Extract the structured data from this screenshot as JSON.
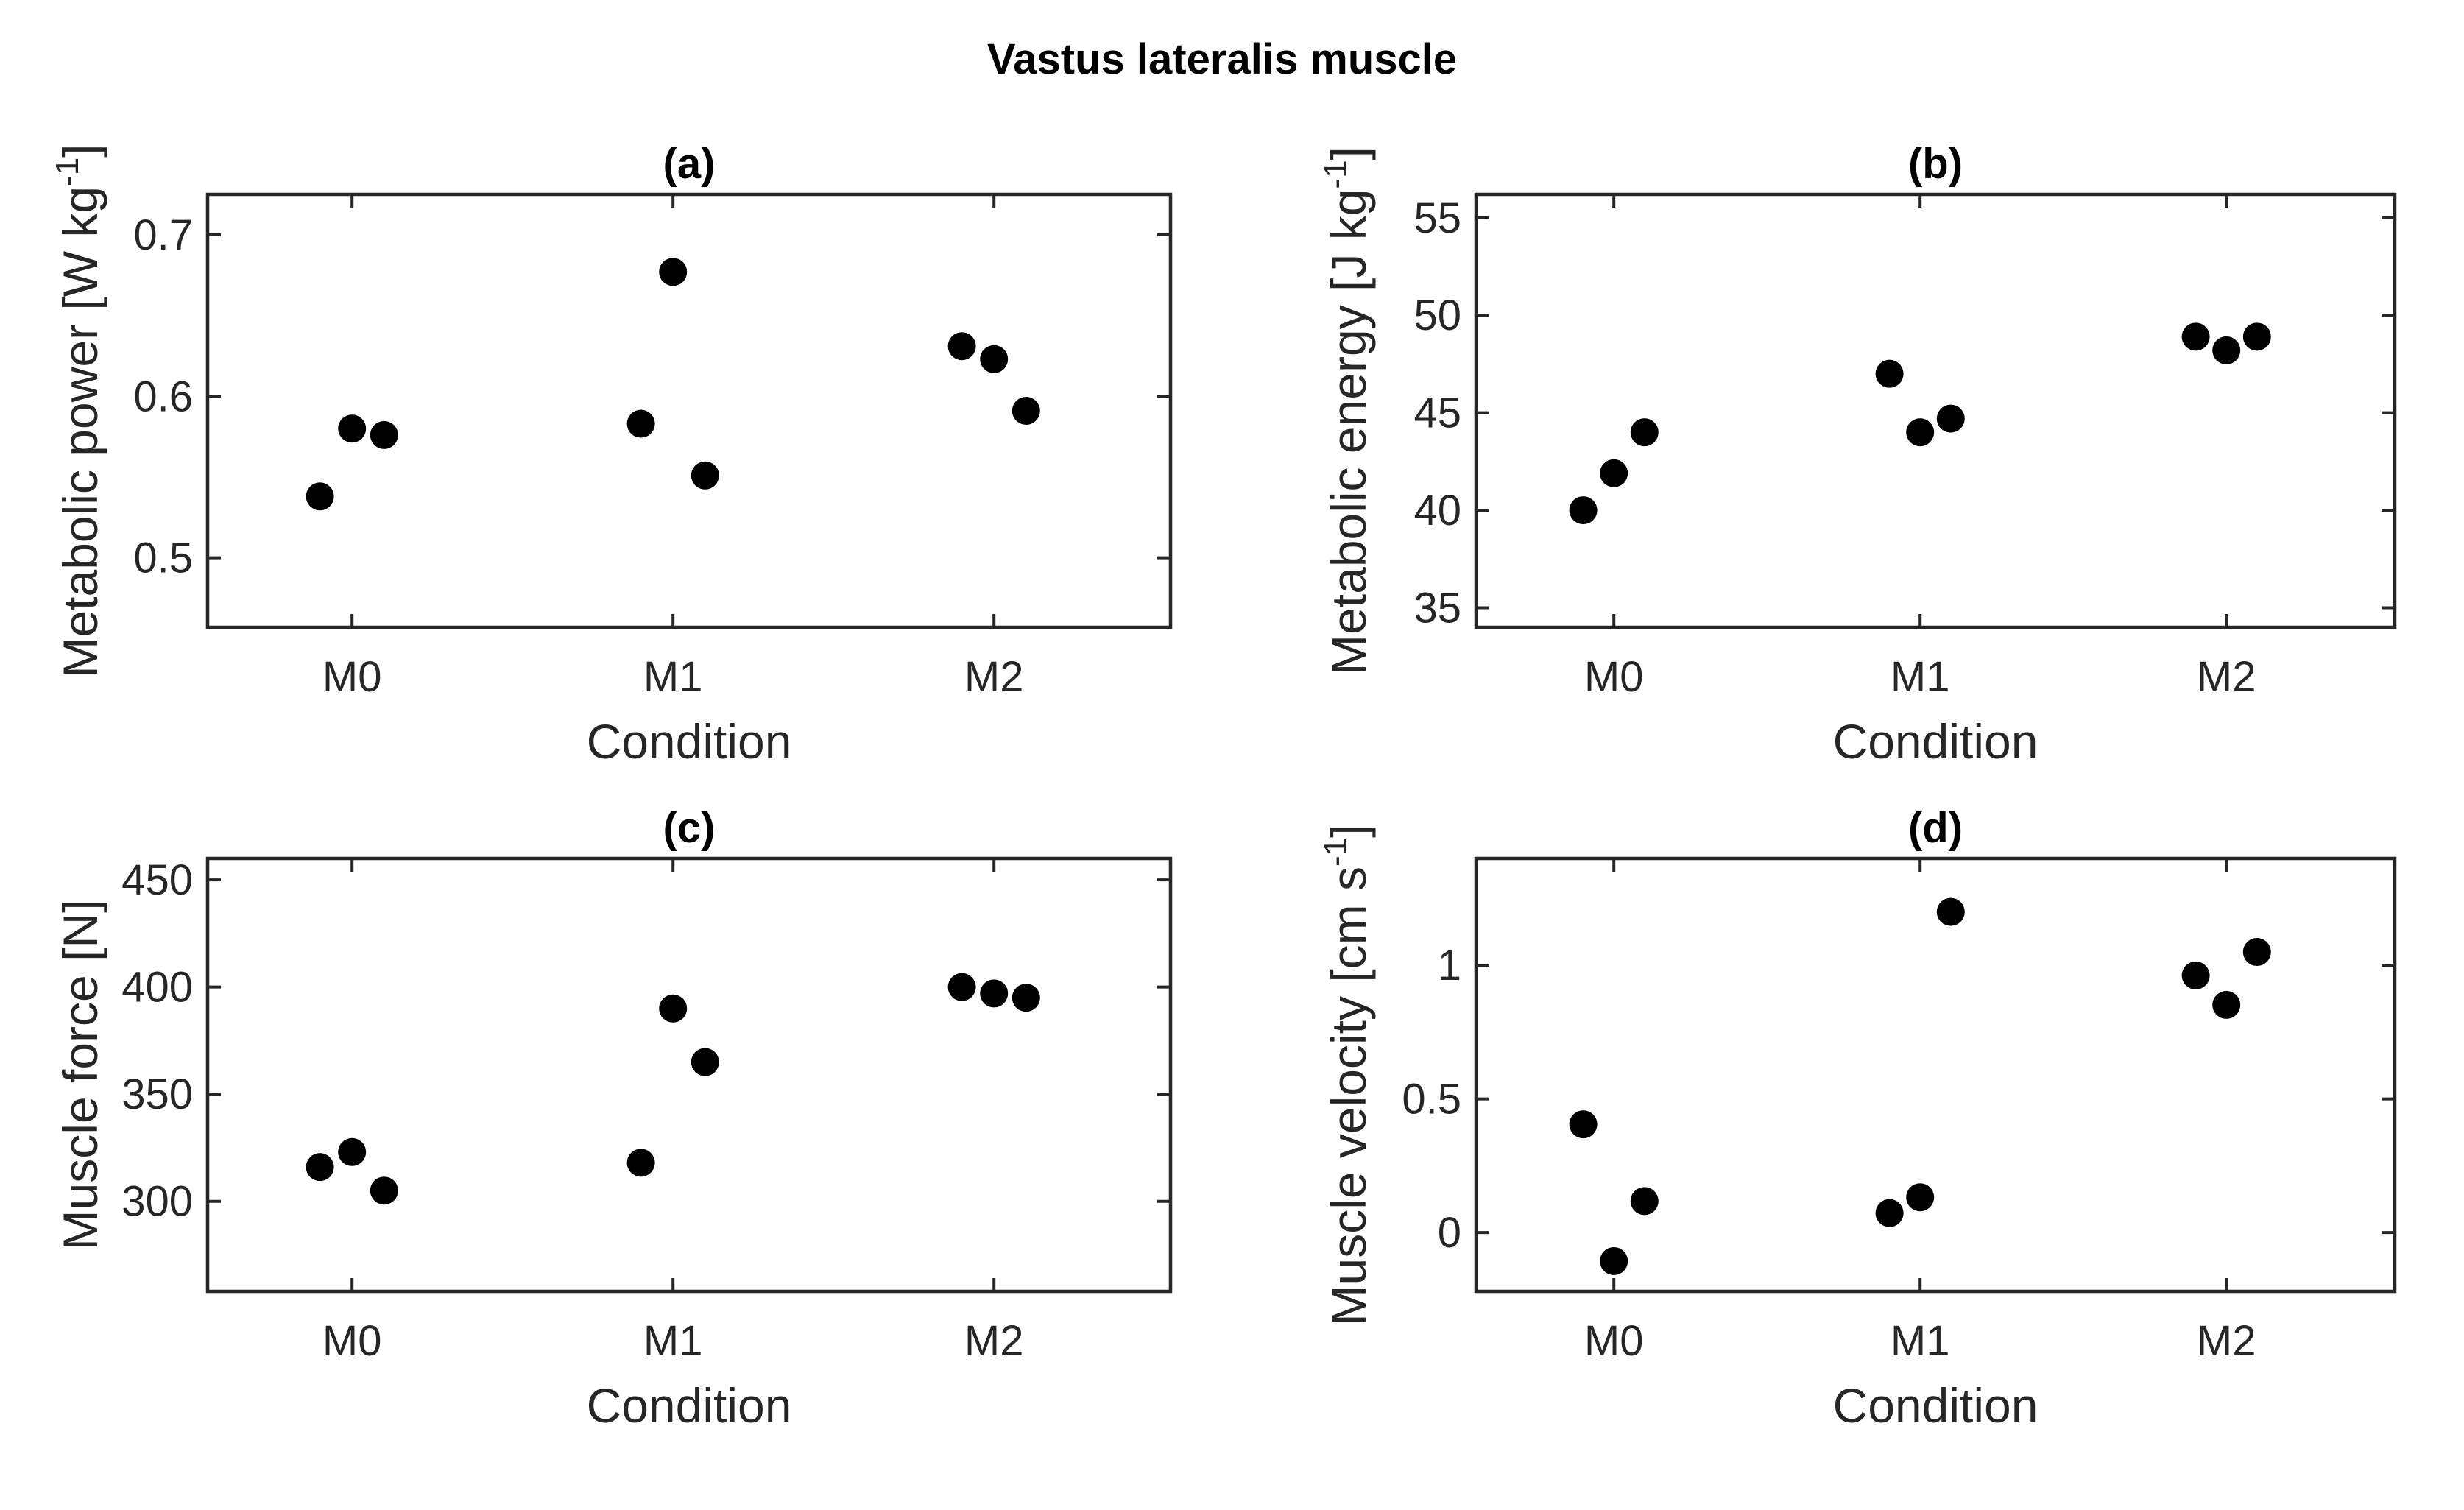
{
  "suptitle": "Vastus lateralis muscle",
  "chart_data": [
    {
      "type": "scatter",
      "title": "(a)",
      "xlabel": "Condition",
      "ylabel": "Metabolic power [W kg",
      "ylabel_sup": "-1",
      "ylabel_end": "]",
      "categories": [
        "M0",
        "M1",
        "M2"
      ],
      "xlim": [
        -0.45,
        2.55
      ],
      "ylim": [
        0.457,
        0.725
      ],
      "yticks": [
        0.5,
        0.6,
        0.7
      ],
      "yticklabels": [
        "0.5",
        "0.6",
        "0.7"
      ],
      "grid": false,
      "marker_color": "#000000",
      "points": [
        {
          "x": -0.1,
          "y": 0.538
        },
        {
          "x": 0.0,
          "y": 0.58
        },
        {
          "x": 0.1,
          "y": 0.576
        },
        {
          "x": 0.9,
          "y": 0.583
        },
        {
          "x": 1.0,
          "y": 0.677
        },
        {
          "x": 1.1,
          "y": 0.551
        },
        {
          "x": 1.9,
          "y": 0.631
        },
        {
          "x": 2.0,
          "y": 0.623
        },
        {
          "x": 2.1,
          "y": 0.591
        }
      ]
    },
    {
      "type": "scatter",
      "title": "(b)",
      "xlabel": "Condition",
      "ylabel": "Metabolic energy [J kg",
      "ylabel_sup": "-1",
      "ylabel_end": "]",
      "categories": [
        "M0",
        "M1",
        "M2"
      ],
      "xlim": [
        -0.45,
        2.55
      ],
      "ylim": [
        34.0,
        56.2
      ],
      "yticks": [
        35,
        40,
        45,
        50,
        55
      ],
      "yticklabels": [
        "35",
        "40",
        "45",
        "50",
        "55"
      ],
      "grid": false,
      "marker_color": "#000000",
      "points": [
        {
          "x": -0.1,
          "y": 40.0
        },
        {
          "x": 0.0,
          "y": 41.9
        },
        {
          "x": 0.1,
          "y": 44.0
        },
        {
          "x": 0.9,
          "y": 47.0
        },
        {
          "x": 1.0,
          "y": 44.0
        },
        {
          "x": 1.1,
          "y": 44.7
        },
        {
          "x": 1.9,
          "y": 48.9
        },
        {
          "x": 2.0,
          "y": 48.2
        },
        {
          "x": 2.1,
          "y": 48.9
        }
      ]
    },
    {
      "type": "scatter",
      "title": "(c)",
      "xlabel": "Condition",
      "ylabel": "Muscle force [N]",
      "ylabel_sup": "",
      "ylabel_end": "",
      "categories": [
        "M0",
        "M1",
        "M2"
      ],
      "xlim": [
        -0.45,
        2.55
      ],
      "ylim": [
        258,
        460
      ],
      "yticks": [
        300,
        350,
        400,
        450
      ],
      "yticklabels": [
        "300",
        "350",
        "400",
        "450"
      ],
      "grid": false,
      "marker_color": "#000000",
      "points": [
        {
          "x": -0.1,
          "y": 316
        },
        {
          "x": 0.0,
          "y": 323
        },
        {
          "x": 0.1,
          "y": 305
        },
        {
          "x": 0.9,
          "y": 318
        },
        {
          "x": 1.0,
          "y": 390
        },
        {
          "x": 1.1,
          "y": 365
        },
        {
          "x": 1.9,
          "y": 400
        },
        {
          "x": 2.0,
          "y": 397
        },
        {
          "x": 2.1,
          "y": 395
        }
      ]
    },
    {
      "type": "scatter",
      "title": "(d)",
      "xlabel": "Condition",
      "ylabel": "Muscle velocity [cm s",
      "ylabel_sup": "-1",
      "ylabel_end": "]",
      "categories": [
        "M0",
        "M1",
        "M2"
      ],
      "xlim": [
        -0.45,
        2.55
      ],
      "ylim": [
        -0.22,
        1.4
      ],
      "yticks": [
        0,
        0.5,
        1
      ],
      "yticklabels": [
        "0",
        "0.5",
        "1"
      ],
      "grid": false,
      "marker_color": "#000000",
      "points": [
        {
          "x": -0.1,
          "y": 0.405
        },
        {
          "x": 0.0,
          "y": -0.107
        },
        {
          "x": 0.1,
          "y": 0.118
        },
        {
          "x": 0.9,
          "y": 0.073
        },
        {
          "x": 1.0,
          "y": 0.132
        },
        {
          "x": 1.1,
          "y": 1.2
        },
        {
          "x": 1.9,
          "y": 0.962
        },
        {
          "x": 2.0,
          "y": 0.852
        },
        {
          "x": 2.1,
          "y": 1.05
        }
      ]
    }
  ]
}
